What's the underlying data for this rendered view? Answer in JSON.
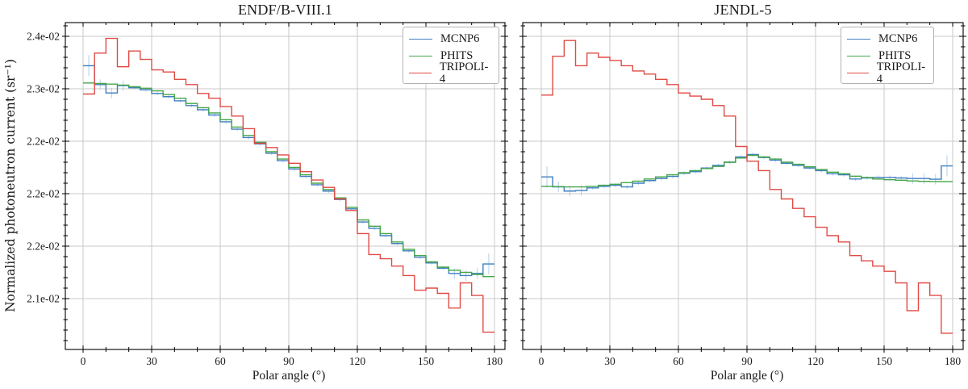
{
  "ylabel": "Normalized photoneutron current (sr⁻¹)",
  "chart_data": [
    {
      "type": "step",
      "title": "ENDF/B-VIII.1",
      "xlabel": "Polar angle (°)",
      "ylabel": "Normalized photoneutron current (sr⁻¹)",
      "bin_start": 0,
      "bin_width": 5,
      "n_bins": 36,
      "xlim": [
        -7.8,
        184.6
      ],
      "ylim": [
        0.021015,
        0.024131
      ],
      "grid": true,
      "x_ticks": [
        0,
        30,
        60,
        90,
        120,
        150,
        180
      ],
      "x_tick_labels": [
        "0",
        "30",
        "60",
        "90",
        "120",
        "150",
        "180"
      ],
      "x_minor_step": 10,
      "y_ticks": [
        0.024,
        0.0235,
        0.023,
        0.0225,
        0.022,
        0.0215
      ],
      "y_tick_labels": [
        "2.4e-02",
        "2.3e-02",
        "2.2e-02",
        "2.2e-02",
        "2.2e-02",
        "2.1e-02"
      ],
      "y_minor_step": 0.0001,
      "legend": {
        "position": "upper right",
        "entries": [
          "MCNP6",
          "PHITS",
          "TRIPOLI-4"
        ]
      },
      "series": [
        {
          "name": "MCNP6",
          "color": "#3f7fc1",
          "values": [
            0.02372,
            0.02354,
            0.02346,
            0.02353,
            0.02351,
            0.02349,
            0.023455,
            0.023425,
            0.023385,
            0.02334,
            0.0233,
            0.02325,
            0.023185,
            0.023115,
            0.023035,
            0.022975,
            0.022885,
            0.022815,
            0.022735,
            0.022665,
            0.022585,
            0.022525,
            0.022445,
            0.022355,
            0.02223,
            0.02217,
            0.0221,
            0.022025,
            0.021955,
            0.021895,
            0.02184,
            0.02179,
            0.02174,
            0.02172,
            0.02174,
            0.02183
          ]
        },
        {
          "name": "PHITS",
          "color": "#44a649",
          "values": [
            0.023555,
            0.02355,
            0.023545,
            0.023535,
            0.02352,
            0.023505,
            0.02348,
            0.023445,
            0.02341,
            0.02336,
            0.02332,
            0.02327,
            0.023205,
            0.023135,
            0.023055,
            0.02299,
            0.0229,
            0.02283,
            0.02275,
            0.02268,
            0.0226,
            0.02254,
            0.02246,
            0.02237,
            0.02225,
            0.02219,
            0.02212,
            0.02204,
            0.02197,
            0.02191,
            0.02185,
            0.0218,
            0.02177,
            0.02175,
            0.02173,
            0.02171
          ]
        },
        {
          "name": "TRIPOLI-4",
          "color": "#e04b44",
          "values": [
            0.02345,
            0.02384,
            0.02398,
            0.02371,
            0.02386,
            0.02378,
            0.02368,
            0.02366,
            0.02359,
            0.02354,
            0.023455,
            0.02341,
            0.02333,
            0.02324,
            0.02312,
            0.02298,
            0.02294,
            0.02287,
            0.02279,
            0.02271,
            0.02263,
            0.02256,
            0.02245,
            0.02234,
            0.02212,
            0.02192,
            0.02188,
            0.02181,
            0.02172,
            0.02158,
            0.0216,
            0.02155,
            0.02141,
            0.02165,
            0.02153,
            0.02118
          ]
        }
      ],
      "error_bars": {
        "series": "MCNP6",
        "color": "#8fb8dd",
        "opacity": 0.55,
        "edge": 0.0001,
        "near_edge": 5e-05,
        "mid": 1.8e-05,
        "near_edge_bins": 3
      }
    },
    {
      "type": "step",
      "title": "JENDL-5",
      "xlabel": "Polar angle (°)",
      "ylabel": "Normalized photoneutron current (sr⁻¹)",
      "bin_start": 0,
      "bin_width": 5,
      "n_bins": 36,
      "xlim": [
        -8.1,
        184.6
      ],
      "ylim": [
        0.021015,
        0.024131
      ],
      "grid": true,
      "x_ticks": [
        0,
        30,
        60,
        90,
        120,
        150,
        180
      ],
      "x_tick_labels": [
        "0",
        "30",
        "60",
        "90",
        "120",
        "150",
        "180"
      ],
      "x_minor_step": 10,
      "y_ticks": [
        0.024,
        0.0235,
        0.023,
        0.0225,
        0.022,
        0.0215
      ],
      "y_tick_labels": [],
      "y_minor_step": 0.0001,
      "legend": {
        "position": "upper right",
        "entries": [
          "MCNP6",
          "PHITS",
          "TRIPOLI-4"
        ]
      },
      "series": [
        {
          "name": "MCNP6",
          "color": "#3f7fc1",
          "values": [
            0.02266,
            0.022565,
            0.022525,
            0.02253,
            0.022555,
            0.02257,
            0.02258,
            0.022565,
            0.0226,
            0.022625,
            0.022645,
            0.022665,
            0.022695,
            0.02271,
            0.022745,
            0.02277,
            0.0228,
            0.02285,
            0.022873,
            0.022845,
            0.02282,
            0.02279,
            0.02277,
            0.022745,
            0.02272,
            0.02269,
            0.02268,
            0.02264,
            0.02265,
            0.022655,
            0.022655,
            0.02265,
            0.022645,
            0.022645,
            0.022638,
            0.022765
          ]
        },
        {
          "name": "PHITS",
          "color": "#44a649",
          "values": [
            0.02257,
            0.022568,
            0.022565,
            0.022565,
            0.02257,
            0.02258,
            0.02259,
            0.022605,
            0.02262,
            0.02264,
            0.02266,
            0.02268,
            0.0227,
            0.02272,
            0.02274,
            0.02276,
            0.0228,
            0.02284,
            0.022865,
            0.02285,
            0.02283,
            0.0228,
            0.02278,
            0.022756,
            0.02273,
            0.022705,
            0.02269,
            0.022667,
            0.022654,
            0.02264,
            0.022633,
            0.022628,
            0.022622,
            0.022618,
            0.022616,
            0.022615
          ]
        },
        {
          "name": "TRIPOLI-4",
          "color": "#e04b44",
          "values": [
            0.02344,
            0.02381,
            0.02396,
            0.02372,
            0.02384,
            0.0238,
            0.02377,
            0.02372,
            0.02367,
            0.02364,
            0.02359,
            0.02354,
            0.02346,
            0.02343,
            0.0234,
            0.02334,
            0.02324,
            0.02295,
            0.02281,
            0.02272,
            0.02254,
            0.02245,
            0.02236,
            0.02228,
            0.02218,
            0.0221,
            0.02204,
            0.02191,
            0.02186,
            0.02181,
            0.02176,
            0.02165,
            0.021385,
            0.02165,
            0.02153,
            0.02117
          ]
        }
      ],
      "error_bars": {
        "series": "MCNP6",
        "color": "#8fb8dd",
        "opacity": 0.55,
        "edge": 0.0001,
        "near_edge": 5e-05,
        "mid": 1.8e-05,
        "near_edge_bins": 3
      }
    }
  ],
  "style": {
    "grid_color": "#c8c8c8",
    "spine_color": "#000000",
    "background": "#ffffff"
  }
}
